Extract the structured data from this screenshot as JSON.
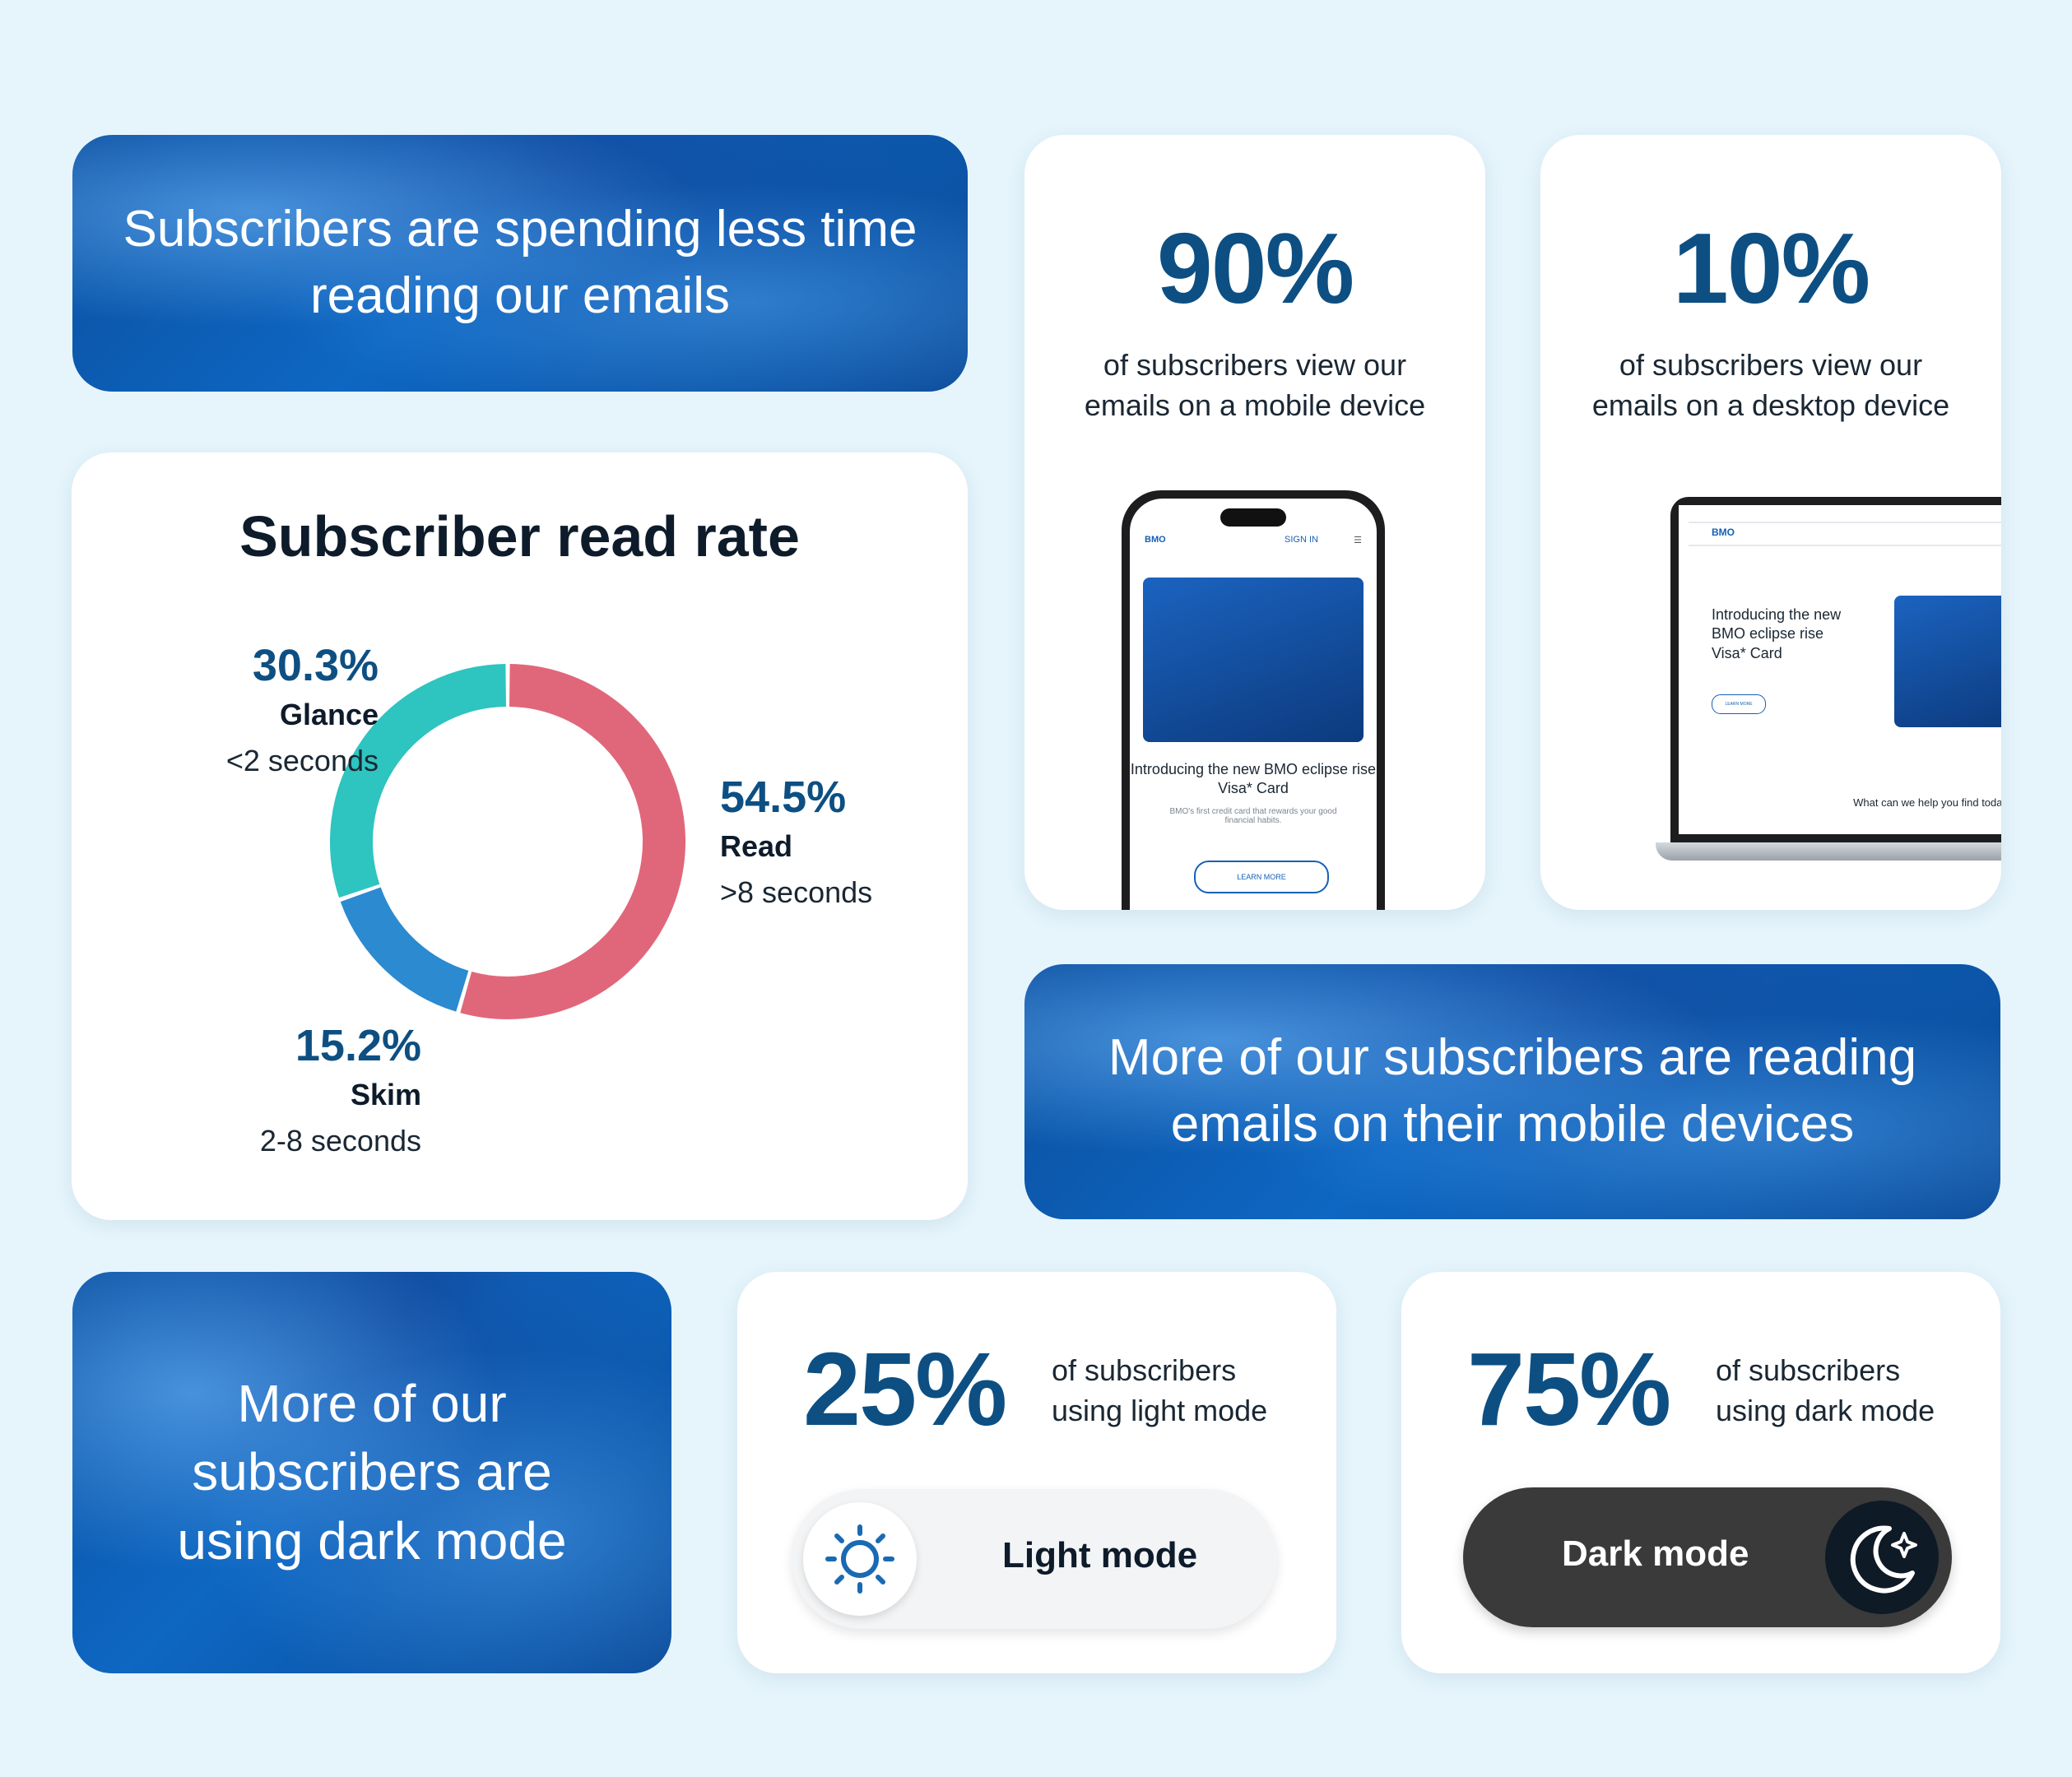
{
  "banner_time": "Subscribers are spending less time reading our emails",
  "banner_mobile": "More of our subscribers are reading emails on their mobile devices",
  "banner_dark": "More of our subscribers are using dark mode",
  "mobile_stat": {
    "value": "90%",
    "desc": "of subscribers view our emails on a mobile device"
  },
  "desktop_stat": {
    "value": "10%",
    "desc": "of subscribers view our emails on a desktop device"
  },
  "phone_mock": {
    "brand": "BMO",
    "sign_in": "SIGN IN",
    "caption": "Introducing the new BMO eclipse rise Visa* Card",
    "small": "BMO's first credit card that rewards your good financial habits.",
    "button": "LEARN MORE"
  },
  "laptop_mock": {
    "brand": "BMO",
    "headline": "Introducing the new BMO eclipse rise Visa* Card",
    "button": "LEARN MORE",
    "help": "What can we help you find today"
  },
  "light_mode": {
    "value": "25%",
    "desc": "of subscribers using light mode",
    "toggle_label": "Light mode",
    "icon": "sun-icon"
  },
  "dark_mode": {
    "value": "75%",
    "desc": "of subscribers using dark mode",
    "toggle_label": "Dark mode",
    "icon": "moon-icon"
  },
  "colors": {
    "glance": "#2ec4c0",
    "skim": "#2b8ad0",
    "read": "#e0677a",
    "accent": "#0d4f82"
  },
  "chart_data": {
    "type": "pie",
    "title": "Subscriber read rate",
    "donut": true,
    "slices": [
      {
        "label": "Read",
        "value": 54.5,
        "pct_label": "54.5%",
        "range": ">8 seconds",
        "color": "#e0677a"
      },
      {
        "label": "Skim",
        "value": 15.2,
        "pct_label": "15.2%",
        "range": "2-8 seconds",
        "color": "#2b8ad0"
      },
      {
        "label": "Glance",
        "value": 30.3,
        "pct_label": "30.3%",
        "range": "<2 seconds",
        "color": "#2ec4c0"
      }
    ]
  }
}
